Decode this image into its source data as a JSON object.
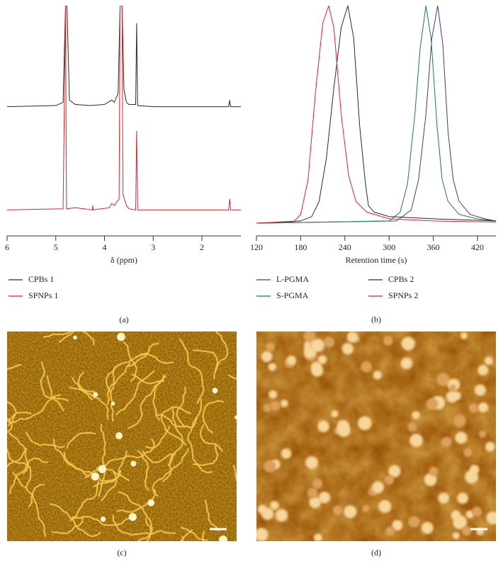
{
  "chart_data": [
    {
      "type": "line",
      "x_label": "δ (ppm)",
      "caption": "(a)",
      "xlim": [
        6,
        1.2
      ],
      "xticks": [
        6,
        5,
        4,
        3,
        2
      ],
      "series": [
        {
          "name": "CPBs 1",
          "color": "#2a2a2a",
          "x": [
            6,
            5.0,
            4.85,
            4.8,
            4.77,
            4.72,
            4.6,
            4.3,
            4.0,
            3.85,
            3.8,
            3.72,
            3.68,
            3.64,
            3.6,
            3.55,
            3.5,
            3.36,
            3.34,
            3.32,
            3.0,
            2.5,
            1.45,
            1.43,
            1.41,
            1.2
          ],
          "values": [
            54,
            54.5,
            56,
            100,
            100,
            57,
            55,
            54.5,
            55,
            57,
            56,
            60,
            100,
            100,
            62,
            56,
            55,
            55,
            92,
            54.5,
            54,
            54,
            54,
            57,
            54,
            54
          ]
        },
        {
          "name": "SPNPs 1",
          "color": "#e0242b",
          "x": [
            6,
            4.85,
            4.8,
            4.78,
            4.6,
            4.25,
            4.24,
            4.23,
            3.9,
            3.85,
            3.8,
            3.7,
            3.68,
            3.64,
            3.62,
            3.55,
            3.5,
            3.36,
            3.34,
            3.32,
            2.5,
            1.45,
            1.43,
            1.41,
            1.2
          ],
          "values": [
            7,
            7.5,
            100,
            7.5,
            8,
            7,
            9,
            7,
            8,
            10,
            9,
            12,
            100,
            100,
            14,
            9,
            7.5,
            7,
            43,
            7,
            7,
            7,
            12,
            7,
            7
          ]
        }
      ]
    },
    {
      "type": "line",
      "x_label": "Retention time (s)",
      "caption": "(b)",
      "xlim": [
        120,
        445
      ],
      "xticks": [
        120,
        180,
        240,
        300,
        360,
        420
      ],
      "series": [
        {
          "name": "L-PGMA",
          "color": "#3d3b9c",
          "x": [
            120,
            310,
            330,
            340,
            350,
            358,
            366,
            373,
            380,
            387,
            395,
            410,
            430,
            445
          ],
          "values": [
            0,
            1,
            6,
            20,
            50,
            85,
            100,
            82,
            42,
            20,
            10,
            4,
            2,
            1
          ]
        },
        {
          "name": "S-PGMA",
          "color": "#1e7a4c",
          "x": [
            120,
            300,
            315,
            325,
            335,
            342,
            350,
            357,
            365,
            372,
            380,
            395,
            420,
            445
          ],
          "values": [
            0,
            1,
            5,
            18,
            50,
            80,
            100,
            85,
            45,
            20,
            10,
            4,
            2,
            1
          ]
        },
        {
          "name": "CPBs 2",
          "color": "#2a2a2a",
          "x": [
            120,
            180,
            195,
            205,
            215,
            225,
            235,
            244,
            252,
            260,
            268,
            272,
            280,
            300,
            360,
            445
          ],
          "values": [
            0,
            1,
            3,
            10,
            30,
            62,
            90,
            100,
            85,
            45,
            18,
            8,
            5,
            3,
            2,
            1
          ]
        },
        {
          "name": "SPNPs 2",
          "color": "#e0242b",
          "x": [
            120,
            170,
            180,
            190,
            200,
            210,
            218,
            225,
            235,
            245,
            255,
            270,
            300,
            360,
            445
          ],
          "values": [
            0,
            0.5,
            4,
            20,
            60,
            92,
            100,
            90,
            50,
            22,
            10,
            5,
            2,
            1,
            0.5
          ]
        }
      ]
    }
  ],
  "images": [
    {
      "caption": "(c)"
    },
    {
      "caption": "(d)"
    }
  ]
}
